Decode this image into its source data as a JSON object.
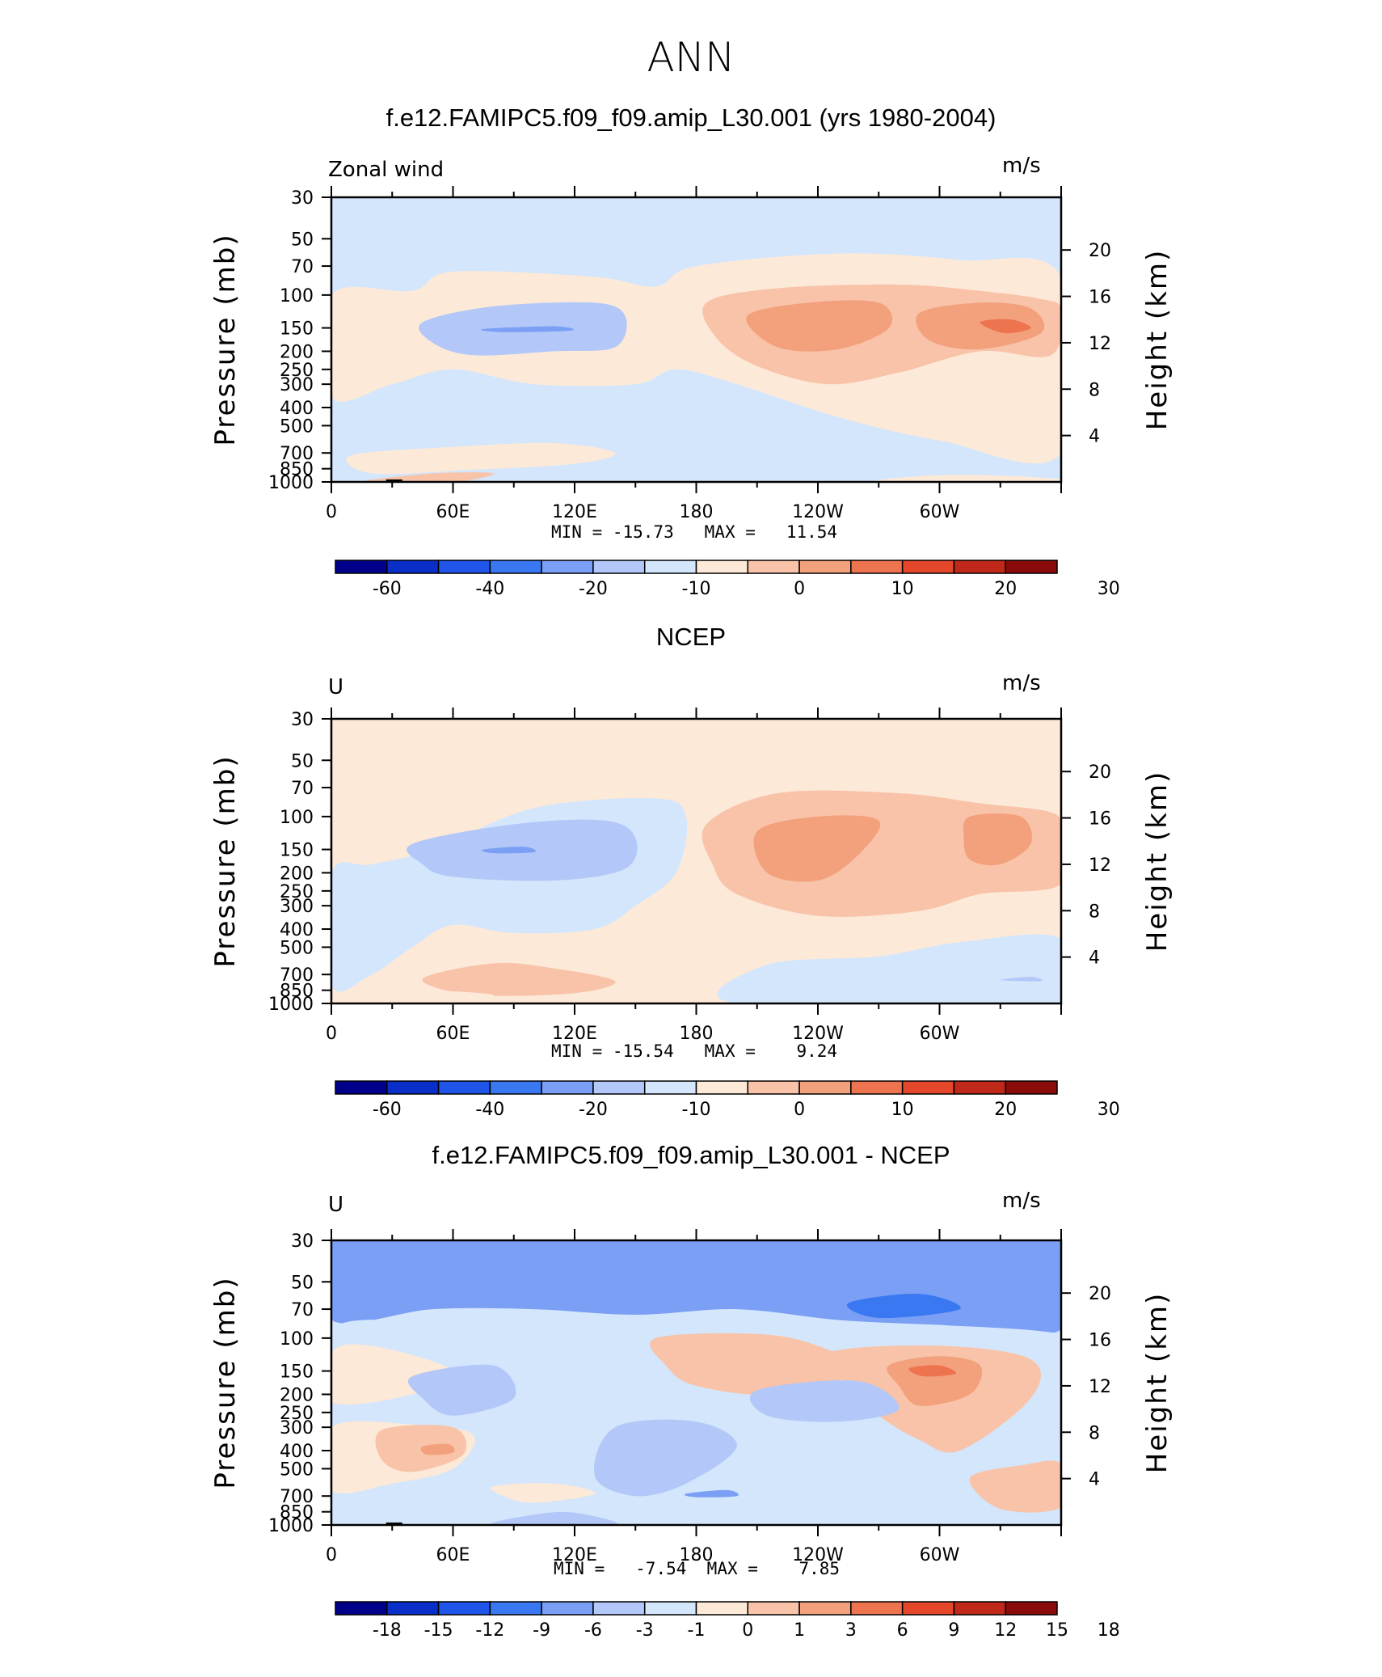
{
  "title": "ANN",
  "palettes": {
    "full": [
      "#00008b",
      "#0a2fc8",
      "#1f55e8",
      "#3a78f2",
      "#7a9ff5",
      "#b3c8f8",
      "#d4e6fb",
      "#fde9d8",
      "#f8c3a8",
      "#f3a07c",
      "#ee7450",
      "#e4472a",
      "#c0281a",
      "#8b0b0b"
    ],
    "diff": [
      "#00008b",
      "#0a2fc8",
      "#1f55e8",
      "#3a78f2",
      "#7a9ff5",
      "#b3c8f8",
      "#d4e6fb",
      "#fde9d8",
      "#f8c3a8",
      "#f3a07c",
      "#ee7450",
      "#e4472a",
      "#c0281a",
      "#8b0b0b"
    ]
  },
  "chart_data": [
    {
      "type": "heatmap",
      "title": "f.e12.FAMIPC5.f09_f09.amip_L30.001 (yrs 1980-2004)",
      "variable": "Zonal wind",
      "units": "m/s",
      "ylabel": "Pressure (mb)",
      "ylabel_right": "Height (km)",
      "x_ticks": [
        "0",
        "60E",
        "120E",
        "180",
        "120W",
        "60W"
      ],
      "y_ticks": [
        "30",
        "50",
        "70",
        "100",
        "150",
        "200",
        "250",
        "300",
        "400",
        "500",
        "700",
        "850",
        "1000"
      ],
      "height_ticks": [
        "20",
        "16",
        "12",
        "8",
        "4"
      ],
      "min_label": "MIN = ",
      "min": "-15.73",
      "max_label": "MAX = ",
      "max": "11.54",
      "colorbar_labels": [
        "-60",
        "-40",
        "-20",
        "-10",
        "0",
        "10",
        "20",
        "30"
      ],
      "palette": "full"
    },
    {
      "type": "heatmap",
      "title": "NCEP",
      "variable": "U",
      "units": "m/s",
      "ylabel": "Pressure (mb)",
      "ylabel_right": "Height (km)",
      "x_ticks": [
        "0",
        "60E",
        "120E",
        "180",
        "120W",
        "60W"
      ],
      "y_ticks": [
        "30",
        "50",
        "70",
        "100",
        "150",
        "200",
        "250",
        "300",
        "400",
        "500",
        "700",
        "850",
        "1000"
      ],
      "height_ticks": [
        "20",
        "16",
        "12",
        "8",
        "4"
      ],
      "min_label": "MIN = ",
      "min": "-15.54",
      "max_label": "MAX = ",
      "max": "9.24",
      "colorbar_labels": [
        "-60",
        "-40",
        "-20",
        "-10",
        "0",
        "10",
        "20",
        "30"
      ],
      "palette": "full"
    },
    {
      "type": "heatmap",
      "title": "f.e12.FAMIPC5.f09_f09.amip_L30.001 - NCEP",
      "variable": "U",
      "units": "m/s",
      "ylabel": "Pressure (mb)",
      "ylabel_right": "Height (km)",
      "x_ticks": [
        "0",
        "60E",
        "120E",
        "180",
        "120W",
        "60W"
      ],
      "y_ticks": [
        "30",
        "50",
        "70",
        "100",
        "150",
        "200",
        "250",
        "300",
        "400",
        "500",
        "700",
        "850",
        "1000"
      ],
      "height_ticks": [
        "20",
        "16",
        "12",
        "8",
        "4"
      ],
      "min_label": "MIN = ",
      "min": "-7.54",
      "max_label": "MAX = ",
      "max": "7.85",
      "colorbar_labels": [
        "-18",
        "-15",
        "-12",
        "-9",
        "-6",
        "-3",
        "-1",
        "0",
        "1",
        "3",
        "6",
        "9",
        "12",
        "15",
        "18"
      ],
      "palette": "diff"
    }
  ]
}
